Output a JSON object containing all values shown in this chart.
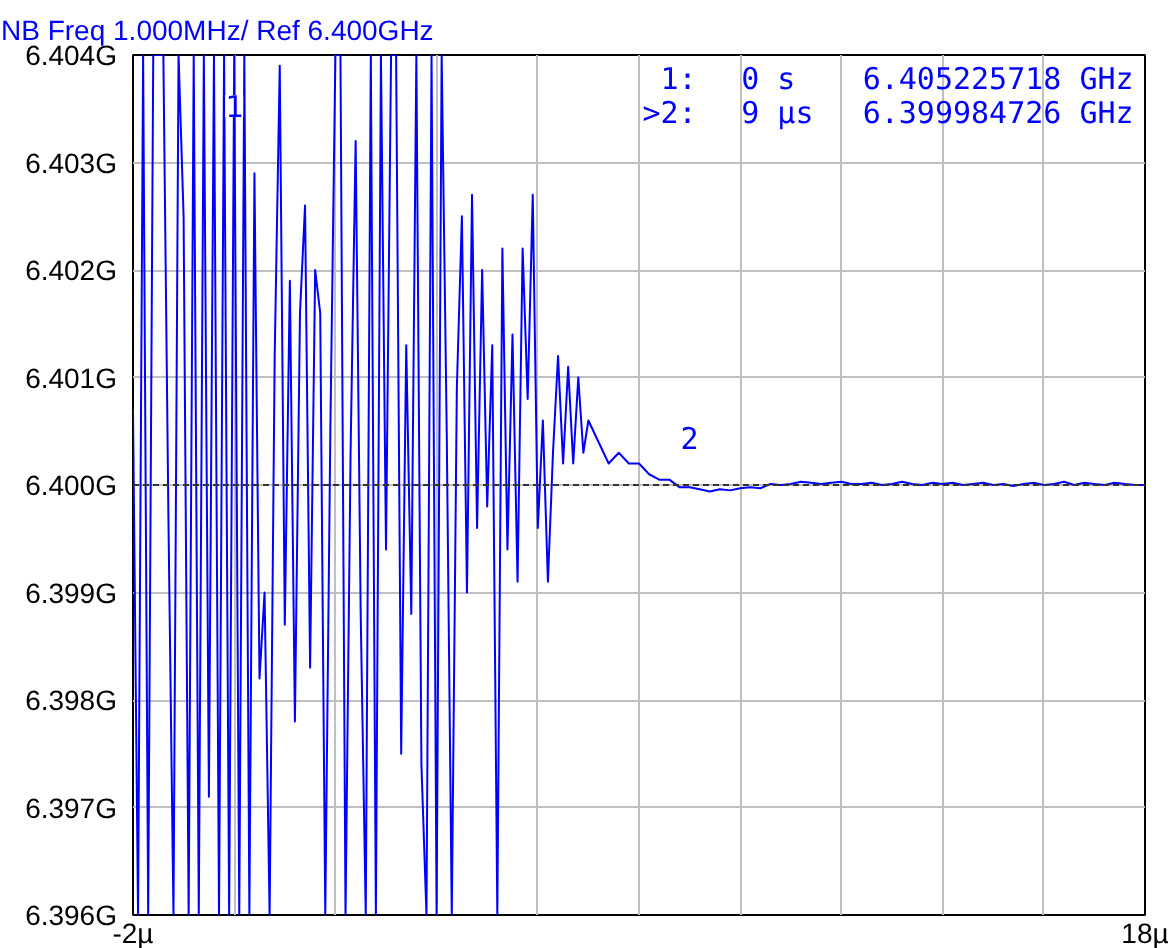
{
  "chart_data": {
    "type": "line",
    "title": "NB Freq 1.000MHz/ Ref 6.400GHz",
    "x": [
      -2,
      -1.9,
      -1.8,
      -1.7,
      -1.6,
      -1.5,
      -1.4,
      -1.3,
      -1.2,
      -1.1,
      -1,
      -0.9,
      -0.8,
      -0.7,
      -0.6,
      -0.5,
      -0.4,
      -0.3,
      -0.2,
      -0.1,
      0,
      0.1,
      0.2,
      0.3,
      0.4,
      0.5,
      0.6,
      0.7,
      0.8,
      0.9,
      1,
      1.1,
      1.2,
      1.3,
      1.4,
      1.5,
      1.6,
      1.7,
      1.8,
      1.9,
      2,
      2.1,
      2.2,
      2.3,
      2.4,
      2.5,
      2.6,
      2.7,
      2.8,
      2.9,
      3,
      3.1,
      3.2,
      3.3,
      3.4,
      3.5,
      3.6,
      3.7,
      3.8,
      3.9,
      4,
      4.1,
      4.2,
      4.3,
      4.4,
      4.5,
      4.6,
      4.7,
      4.8,
      4.9,
      5,
      5.1,
      5.2,
      5.3,
      5.4,
      5.5,
      5.6,
      5.7,
      5.8,
      5.9,
      6,
      6.1,
      6.2,
      6.3,
      6.4,
      6.5,
      6.6,
      6.7,
      6.8,
      6.9,
      7,
      7.2,
      7.4,
      7.6,
      7.8,
      8,
      8.2,
      8.4,
      8.6,
      8.8,
      9,
      9.2,
      9.4,
      9.6,
      9.8,
      10,
      10.2,
      10.4,
      10.6,
      10.8,
      11,
      11.2,
      11.4,
      11.6,
      11.8,
      12,
      12.2,
      12.4,
      12.6,
      12.8,
      13,
      13.2,
      13.4,
      13.6,
      13.8,
      14,
      14.2,
      14.4,
      14.6,
      14.8,
      15,
      15.2,
      15.4,
      15.6,
      15.8,
      16,
      16.2,
      16.4,
      16.6,
      16.8,
      17,
      17.2,
      17.4,
      17.6,
      17.8,
      18
    ],
    "series": [
      {
        "color": "#0000ff",
        "values": [
          6.4007,
          6.396,
          6.404,
          6.396,
          6.404,
          6.404,
          6.404,
          6.3997,
          6.396,
          6.404,
          6.4025,
          6.396,
          6.404,
          6.396,
          6.404,
          6.3971,
          6.404,
          6.396,
          6.404,
          6.396,
          6.404,
          6.396,
          6.404,
          6.396,
          6.4029,
          6.3982,
          6.399,
          6.396,
          6.4012,
          6.4039,
          6.3987,
          6.4019,
          6.3978,
          6.4016,
          6.4026,
          6.3983,
          6.402,
          6.4016,
          6.396,
          6.4005,
          6.404,
          6.404,
          6.396,
          6.4003,
          6.4032,
          6.3988,
          6.396,
          6.404,
          6.396,
          6.404,
          6.3994,
          6.404,
          6.404,
          6.3975,
          6.4013,
          6.3988,
          6.404,
          6.3974,
          6.396,
          6.404,
          6.396,
          6.404,
          6.4005,
          6.396,
          6.4009,
          6.4025,
          6.399,
          6.4027,
          6.3996,
          6.402,
          6.3998,
          6.4013,
          6.396,
          6.4022,
          6.3994,
          6.4014,
          6.3991,
          6.4022,
          6.4008,
          6.4027,
          6.3996,
          6.4006,
          6.3991,
          6.4003,
          6.4012,
          6.4002,
          6.4011,
          6.4002,
          6.401,
          6.4003,
          6.4006,
          6.4004,
          6.4002,
          6.4003,
          6.4002,
          6.4002,
          6.4001,
          6.40005,
          6.40005,
          6.39998,
          6.39998,
          6.39996,
          6.39994,
          6.39996,
          6.39995,
          6.39997,
          6.39998,
          6.39997,
          6.40001,
          6.4,
          6.40001,
          6.40003,
          6.40002,
          6.40001,
          6.40002,
          6.40003,
          6.40001,
          6.40001,
          6.40002,
          6.4,
          6.40001,
          6.40003,
          6.40001,
          6.4,
          6.40002,
          6.40001,
          6.40002,
          6.4,
          6.40001,
          6.40002,
          6.4,
          6.40001,
          6.39999,
          6.40001,
          6.40002,
          6.4,
          6.40001,
          6.40003,
          6.4,
          6.40002,
          6.40001,
          6.4,
          6.40002,
          6.40001,
          6.4,
          6.4
        ]
      }
    ],
    "xlim": [
      -2,
      18
    ],
    "xticks": [
      {
        "value": -2,
        "label": "-2µ"
      },
      {
        "value": 0,
        "label": null
      },
      {
        "value": 2,
        "label": null
      },
      {
        "value": 4,
        "label": null
      },
      {
        "value": 6,
        "label": null
      },
      {
        "value": 8,
        "label": null
      },
      {
        "value": 10,
        "label": null
      },
      {
        "value": 12,
        "label": null
      },
      {
        "value": 14,
        "label": null
      },
      {
        "value": 16,
        "label": null
      },
      {
        "value": 18,
        "label": "18µ"
      }
    ],
    "ylim": [
      6.396,
      6.404
    ],
    "yticks": [
      {
        "value": 6.396,
        "label": "6.396G"
      },
      {
        "value": 6.397,
        "label": "6.397G"
      },
      {
        "value": 6.398,
        "label": "6.398G"
      },
      {
        "value": 6.399,
        "label": "6.399G"
      },
      {
        "value": 6.4,
        "label": "6.400G"
      },
      {
        "value": 6.401,
        "label": "6.401G"
      },
      {
        "value": 6.402,
        "label": "6.402G"
      },
      {
        "value": 6.403,
        "label": "6.403G"
      },
      {
        "value": 6.404,
        "label": "6.404G"
      }
    ],
    "grid": true,
    "ref_lines": [
      {
        "axis": "y",
        "value": 6.4,
        "color": "#333333",
        "line_style": "dashed"
      }
    ],
    "annotations": [
      "1:",
      "0 s",
      "6.405225718 GHz",
      ">2:",
      "9 µs",
      "6.399984726 GHz",
      {
        "text": "1",
        "x": 0,
        "y": 6.404
      },
      {
        "text": "2",
        "x": 9,
        "y": 6.39998
      }
    ]
  }
}
